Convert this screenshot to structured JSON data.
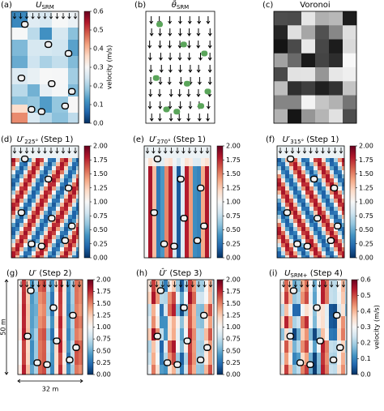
{
  "panels": [
    {
      "label": "(a)",
      "title": {
        "main": "U",
        "sub": "SRM"
      },
      "colorbar": {
        "lim": [
          0,
          0.6
        ],
        "ticks": [
          {
            "value": 0,
            "label": "0.0"
          },
          0.1,
          0.2,
          0.3,
          0.4,
          0.5,
          0.6
        ],
        "label": "velocity (m/s)"
      }
    },
    {
      "label": "(b)",
      "title": {
        "main": "θ̂",
        "sub": "SRM"
      }
    },
    {
      "label": "(c)",
      "title": {
        "main": "Voronoi"
      }
    },
    {
      "label": "(d)",
      "title": {
        "main": "U′",
        "sub": "225°",
        "rest": " (Step 1)"
      },
      "colorbar": {
        "lim": [
          0,
          2
        ],
        "ticks": [
          {
            "value": 0,
            "label": "0.00"
          },
          0.25,
          {
            "value": 0.5,
            "label": "0.50"
          },
          0.75,
          {
            "value": 1,
            "label": "1.00"
          },
          1.25,
          {
            "value": 1.5,
            "label": "1.50"
          },
          1.75,
          {
            "value": 2,
            "label": "2.00"
          }
        ]
      }
    },
    {
      "label": "(e)",
      "title": {
        "main": "U′",
        "sub": "270°",
        "rest": " (Step 1)"
      },
      "colorbar": {
        "lim": [
          0,
          2
        ],
        "ticks": [
          {
            "value": 0,
            "label": "0.00"
          },
          0.25,
          {
            "value": 0.5,
            "label": "0.50"
          },
          0.75,
          {
            "value": 1,
            "label": "1.00"
          },
          1.25,
          {
            "value": 1.5,
            "label": "1.50"
          },
          1.75,
          {
            "value": 2,
            "label": "2.00"
          }
        ]
      }
    },
    {
      "label": "(f)",
      "title": {
        "main": "U′",
        "sub": "315°",
        "rest": " (Step 1)"
      },
      "colorbar": {
        "lim": [
          0,
          2
        ],
        "ticks": [
          {
            "value": 0,
            "label": "0.00"
          },
          0.25,
          {
            "value": 0.5,
            "label": "0.50"
          },
          0.75,
          {
            "value": 1,
            "label": "1.00"
          },
          1.25,
          {
            "value": 1.5,
            "label": "1.50"
          },
          1.75,
          {
            "value": 2,
            "label": "2.00"
          }
        ]
      }
    },
    {
      "label": "(g)",
      "title": {
        "main": "U′",
        "rest": " (Step 2)"
      },
      "colorbar": {
        "lim": [
          0,
          2
        ],
        "ticks": [
          {
            "value": 0,
            "label": "0.00"
          },
          0.25,
          {
            "value": 0.5,
            "label": "0.50"
          },
          0.75,
          {
            "value": 1,
            "label": "1.00"
          },
          1.25,
          {
            "value": 1.5,
            "label": "1.50"
          },
          1.75,
          {
            "value": 2,
            "label": "2.00"
          }
        ]
      },
      "scale": {
        "height": "50 m",
        "width": "32 m"
      }
    },
    {
      "label": "(h)",
      "title": {
        "main": "Û′",
        "rest": " (Step 3)"
      },
      "colorbar": {
        "lim": [
          0,
          2
        ],
        "ticks": [
          {
            "value": 0,
            "label": "0.00"
          },
          0.25,
          {
            "value": 0.5,
            "label": "0.50"
          },
          0.75,
          {
            "value": 1,
            "label": "1.00"
          },
          1.25,
          {
            "value": 1.5,
            "label": "1.50"
          },
          1.75,
          {
            "value": 2,
            "label": "2.00"
          }
        ]
      }
    },
    {
      "label": "(i)",
      "title": {
        "main": "U",
        "sub": "SRM+",
        "rest": " (Step 4)"
      },
      "colorbar": {
        "lim": [
          0,
          0.6
        ],
        "ticks": [
          {
            "value": 0,
            "label": "0.0"
          },
          0.1,
          0.2,
          0.3,
          0.4,
          0.5,
          0.6
        ],
        "label": "velocity (m/s)"
      }
    }
  ]
}
